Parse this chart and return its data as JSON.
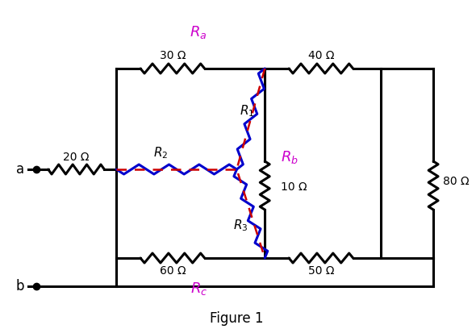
{
  "title": "Figure 1",
  "bg_color": "#ffffff",
  "wire_color": "#000000",
  "resistor_color": "#000000",
  "blue_resistor_color": "#0000cc",
  "dashed_color": "#cc0000",
  "magenta_color": "#cc00cc",
  "resistor_labels": {
    "R1": "R_1",
    "R2": "R_2",
    "R3": "R_3",
    "Ra": "R_a",
    "Rb": "R_b",
    "Rc": "R_c"
  },
  "value_labels": {
    "top_left": "30 Ω",
    "top_right": "40 Ω",
    "bottom_left": "60 Ω",
    "bottom_right": "50 Ω",
    "left_series": "20 Ω",
    "right_vertical": "80 Ω",
    "center_vertical": "10 Ω"
  }
}
